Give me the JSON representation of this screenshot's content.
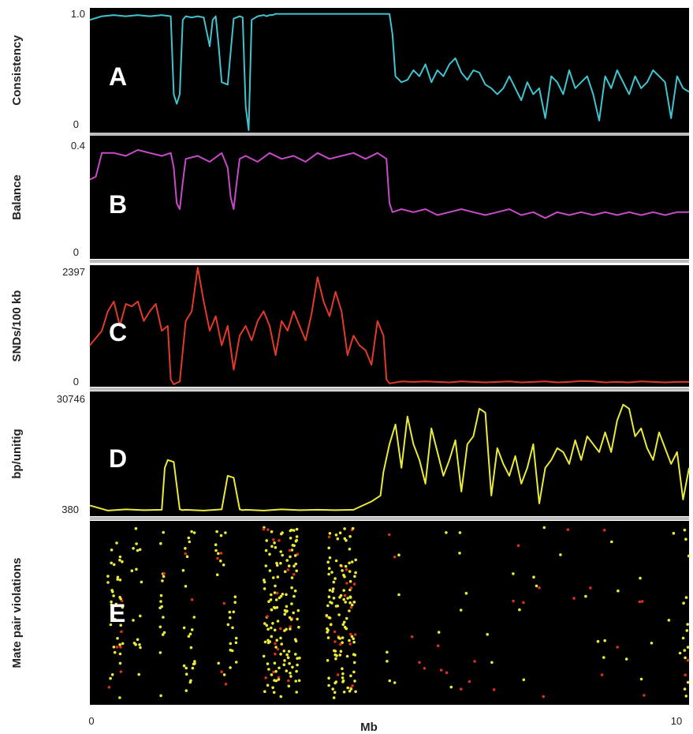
{
  "chart_data": {
    "type": "line",
    "xlabel": "Mb",
    "xlim": [
      0,
      10
    ],
    "x_ticks": [
      "0",
      "10"
    ],
    "panels": [
      {
        "letter": "A",
        "ylabel": "Consistency",
        "ylim": [
          0,
          1.0
        ],
        "y_ticks": [
          "1.0",
          "0"
        ],
        "color": "#3fc4d0",
        "series": {
          "x": [
            0,
            0.2,
            0.4,
            0.6,
            0.8,
            1.0,
            1.2,
            1.35,
            1.4,
            1.45,
            1.5,
            1.55,
            1.6,
            1.7,
            1.8,
            1.9,
            2.0,
            2.05,
            2.1,
            2.15,
            2.2,
            2.3,
            2.4,
            2.5,
            2.55,
            2.6,
            2.65,
            2.7,
            2.8,
            2.9,
            2.95,
            3.0,
            3.05,
            3.1,
            3.3,
            3.5,
            3.7,
            3.9,
            4.1,
            4.3,
            4.5,
            4.7,
            4.9,
            5.0,
            5.05,
            5.1,
            5.2,
            5.3,
            5.4,
            5.5,
            5.6,
            5.7,
            5.8,
            5.9,
            6.0,
            6.1,
            6.2,
            6.3,
            6.4,
            6.5,
            6.6,
            6.7,
            6.8,
            6.9,
            7.0,
            7.1,
            7.2,
            7.3,
            7.4,
            7.5,
            7.6,
            7.7,
            7.8,
            7.9,
            8.0,
            8.1,
            8.2,
            8.3,
            8.4,
            8.5,
            8.6,
            8.7,
            8.8,
            8.9,
            9.0,
            9.1,
            9.2,
            9.3,
            9.4,
            9.5,
            9.6,
            9.7,
            9.8,
            9.9,
            10.0
          ],
          "y": [
            0.92,
            0.95,
            0.96,
            0.95,
            0.96,
            0.95,
            0.96,
            0.95,
            0.3,
            0.22,
            0.3,
            0.92,
            0.95,
            0.94,
            0.95,
            0.94,
            0.7,
            0.92,
            0.95,
            0.7,
            0.4,
            0.38,
            0.93,
            0.95,
            0.94,
            0.2,
            0.0,
            0.92,
            0.95,
            0.96,
            0.95,
            0.96,
            0.96,
            0.97,
            0.97,
            0.97,
            0.97,
            0.97,
            0.97,
            0.97,
            0.97,
            0.97,
            0.97,
            0.97,
            0.8,
            0.45,
            0.4,
            0.42,
            0.5,
            0.45,
            0.55,
            0.4,
            0.5,
            0.45,
            0.55,
            0.6,
            0.48,
            0.42,
            0.5,
            0.48,
            0.38,
            0.35,
            0.3,
            0.35,
            0.45,
            0.35,
            0.25,
            0.4,
            0.3,
            0.35,
            0.1,
            0.45,
            0.4,
            0.3,
            0.5,
            0.35,
            0.4,
            0.45,
            0.3,
            0.08,
            0.45,
            0.35,
            0.5,
            0.4,
            0.3,
            0.45,
            0.35,
            0.4,
            0.5,
            0.45,
            0.4,
            0.1,
            0.45,
            0.35,
            0.32
          ]
        }
      },
      {
        "letter": "B",
        "ylabel": "Balance",
        "ylim": [
          0,
          0.4
        ],
        "y_ticks": [
          "0.4",
          "0"
        ],
        "color": "#c64bc6",
        "series": {
          "x": [
            0,
            0.1,
            0.2,
            0.4,
            0.6,
            0.8,
            1.0,
            1.2,
            1.35,
            1.4,
            1.45,
            1.5,
            1.55,
            1.6,
            1.8,
            2.0,
            2.2,
            2.3,
            2.35,
            2.4,
            2.45,
            2.5,
            2.6,
            2.8,
            3.0,
            3.2,
            3.4,
            3.6,
            3.8,
            4.0,
            4.2,
            4.4,
            4.6,
            4.8,
            4.95,
            5.0,
            5.05,
            5.2,
            5.4,
            5.6,
            5.8,
            6.0,
            6.2,
            6.4,
            6.6,
            6.8,
            7.0,
            7.2,
            7.4,
            7.6,
            7.8,
            8.0,
            8.2,
            8.4,
            8.6,
            8.8,
            9.0,
            9.2,
            9.4,
            9.6,
            9.8,
            10.0
          ],
          "y": [
            0.26,
            0.27,
            0.35,
            0.35,
            0.34,
            0.36,
            0.35,
            0.34,
            0.35,
            0.3,
            0.18,
            0.16,
            0.25,
            0.33,
            0.34,
            0.32,
            0.35,
            0.3,
            0.2,
            0.16,
            0.25,
            0.33,
            0.34,
            0.32,
            0.35,
            0.33,
            0.34,
            0.32,
            0.35,
            0.33,
            0.34,
            0.35,
            0.33,
            0.35,
            0.33,
            0.18,
            0.15,
            0.16,
            0.15,
            0.16,
            0.14,
            0.15,
            0.16,
            0.15,
            0.14,
            0.15,
            0.16,
            0.14,
            0.15,
            0.13,
            0.15,
            0.14,
            0.15,
            0.14,
            0.15,
            0.14,
            0.15,
            0.14,
            0.15,
            0.14,
            0.15,
            0.15
          ]
        }
      },
      {
        "letter": "C",
        "ylabel": "SNDs/100 kb",
        "ylim": [
          0,
          2397
        ],
        "y_ticks": [
          "2397",
          "0"
        ],
        "color": "#e23a2a",
        "series": {
          "x": [
            0,
            0.1,
            0.2,
            0.3,
            0.4,
            0.5,
            0.6,
            0.7,
            0.8,
            0.9,
            1.0,
            1.1,
            1.2,
            1.3,
            1.35,
            1.4,
            1.5,
            1.6,
            1.7,
            1.8,
            1.9,
            2.0,
            2.1,
            2.2,
            2.3,
            2.4,
            2.5,
            2.6,
            2.7,
            2.8,
            2.9,
            3.0,
            3.1,
            3.2,
            3.3,
            3.4,
            3.5,
            3.6,
            3.7,
            3.8,
            3.9,
            4.0,
            4.1,
            4.2,
            4.3,
            4.4,
            4.5,
            4.6,
            4.7,
            4.8,
            4.9,
            4.95,
            5.0,
            5.2,
            5.4,
            5.6,
            5.8,
            6.0,
            6.2,
            6.4,
            6.6,
            6.8,
            7.0,
            7.2,
            7.4,
            7.6,
            7.8,
            8.0,
            8.2,
            8.4,
            8.6,
            8.8,
            9.0,
            9.2,
            9.4,
            9.6,
            9.8,
            10.0
          ],
          "y": [
            800,
            950,
            1100,
            1500,
            1700,
            1200,
            1650,
            1600,
            1700,
            1300,
            1500,
            1650,
            1100,
            1200,
            100,
            0,
            60,
            1300,
            1500,
            2397,
            1700,
            1100,
            1400,
            800,
            1200,
            300,
            1000,
            1200,
            900,
            1300,
            1500,
            1200,
            600,
            1300,
            1100,
            1500,
            1200,
            900,
            1450,
            2200,
            1700,
            1400,
            1900,
            1500,
            600,
            1000,
            800,
            700,
            400,
            1300,
            1000,
            100,
            20,
            60,
            50,
            60,
            50,
            40,
            60,
            50,
            40,
            50,
            60,
            40,
            50,
            60,
            40,
            50,
            70,
            60,
            40,
            50,
            40,
            60,
            50,
            40,
            50,
            50
          ]
        }
      },
      {
        "letter": "D",
        "ylabel": "bp/unitig",
        "ylim": [
          380,
          30746
        ],
        "y_ticks": [
          "30746",
          "380"
        ],
        "color": "#eaea3a",
        "series": {
          "x": [
            0,
            0.3,
            0.6,
            0.9,
            1.2,
            1.25,
            1.3,
            1.4,
            1.5,
            1.55,
            1.6,
            1.9,
            2.2,
            2.3,
            2.4,
            2.5,
            2.55,
            2.6,
            2.9,
            3.2,
            3.5,
            3.8,
            4.1,
            4.4,
            4.7,
            4.85,
            4.9,
            5.0,
            5.1,
            5.2,
            5.3,
            5.4,
            5.5,
            5.6,
            5.7,
            5.8,
            5.9,
            6.0,
            6.1,
            6.2,
            6.3,
            6.4,
            6.5,
            6.6,
            6.7,
            6.8,
            6.9,
            7.0,
            7.1,
            7.2,
            7.3,
            7.4,
            7.5,
            7.6,
            7.7,
            7.8,
            7.9,
            8.0,
            8.1,
            8.2,
            8.3,
            8.4,
            8.5,
            8.6,
            8.7,
            8.8,
            8.9,
            9.0,
            9.1,
            9.2,
            9.3,
            9.4,
            9.5,
            9.6,
            9.7,
            9.8,
            9.9,
            10.0
          ],
          "y": [
            2500,
            1200,
            1500,
            1300,
            1400,
            12000,
            14000,
            13500,
            1500,
            1300,
            1400,
            1200,
            1500,
            10000,
            9500,
            1500,
            1300,
            1400,
            1200,
            1500,
            1300,
            1400,
            1300,
            1400,
            3500,
            5000,
            11000,
            18000,
            23000,
            12000,
            25000,
            18000,
            14000,
            8000,
            22000,
            16000,
            10000,
            14000,
            19000,
            6000,
            18000,
            20000,
            27000,
            26000,
            5000,
            17000,
            13000,
            10000,
            15000,
            8000,
            12000,
            18000,
            3000,
            12000,
            14000,
            17000,
            16000,
            13000,
            19000,
            14000,
            20000,
            18000,
            16000,
            21000,
            16000,
            24000,
            28000,
            27000,
            20000,
            22000,
            17000,
            14000,
            21000,
            17000,
            13000,
            16000,
            4000,
            12000
          ]
        }
      },
      {
        "letter": "E",
        "ylabel": "Mate pair violations",
        "type": "scatter"
      }
    ]
  },
  "colors": {
    "panel_background": "#000000",
    "separator": "#bdbdbd",
    "violation_yellow": "#eaea3a",
    "violation_red": "#d8301e"
  }
}
